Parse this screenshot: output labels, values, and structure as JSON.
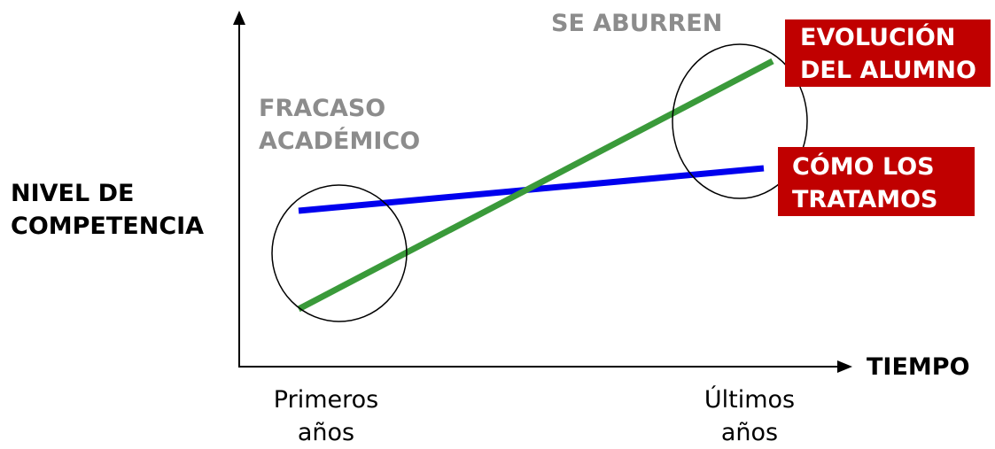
{
  "labels": {
    "y_axis": [
      "NIVEL DE",
      "COMPETENCIA"
    ],
    "x_axis": "TIEMPO",
    "tick_start": [
      "Primeros",
      "años"
    ],
    "tick_end": [
      "Últimos",
      "años"
    ],
    "early_zone": [
      "FRACASO",
      "ACADÉMICO"
    ],
    "late_zone": "SE ABURREN",
    "student_line": [
      "EVOLUCIÓN",
      "DEL ALUMNO"
    ],
    "treatment_line": [
      "CÓMO LOS",
      "TRATAMOS"
    ]
  },
  "colors": {
    "student_line": "#3a9a3a",
    "treatment_line": "#0000ee",
    "label_box": "#c00000",
    "zone_label": "#8c8c8c"
  }
}
